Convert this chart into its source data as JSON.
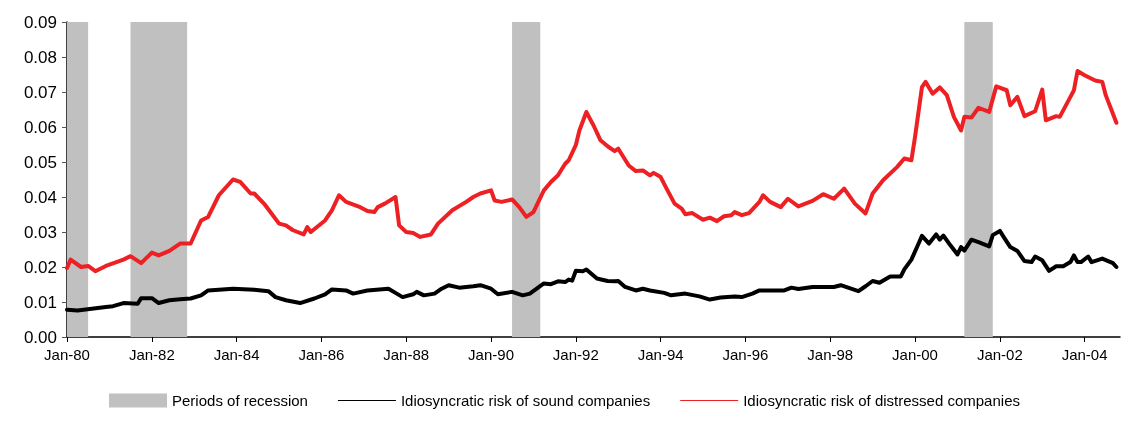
{
  "chart_data": {
    "type": "line",
    "xlim": [
      "1980-01",
      "2004-11"
    ],
    "xticks": [
      {
        "value": "1980-01",
        "label": "Jan-80"
      },
      {
        "value": "1982-01",
        "label": "Jan-82"
      },
      {
        "value": "1984-01",
        "label": "Jan-84"
      },
      {
        "value": "1986-01",
        "label": "Jan-86"
      },
      {
        "value": "1988-01",
        "label": "Jan-88"
      },
      {
        "value": "1990-01",
        "label": "Jan-90"
      },
      {
        "value": "1992-01",
        "label": "Jan-92"
      },
      {
        "value": "1994-01",
        "label": "Jan-94"
      },
      {
        "value": "1996-01",
        "label": "Jan-96"
      },
      {
        "value": "1998-01",
        "label": "Jan-98"
      },
      {
        "value": "2000-01",
        "label": "Jan-00"
      },
      {
        "value": "2002-01",
        "label": "Jan-02"
      },
      {
        "value": "2004-01",
        "label": "Jan-04"
      }
    ],
    "ylim": [
      0,
      0.09
    ],
    "yticks": [
      {
        "value": 0,
        "label": "0.00"
      },
      0.01,
      0.02,
      0.03,
      0.04,
      0.05,
      0.06,
      0.07,
      0.08,
      0.09
    ],
    "grid": false,
    "legend": "bottom",
    "marker": "none",
    "line_style": "solid",
    "bands": [
      {
        "axis": "x",
        "from": "1980-01",
        "to": "1980-07",
        "label": "Periods of recession",
        "color": "#c0c0c0"
      },
      {
        "axis": "x",
        "from": "1981-07",
        "to": "1982-11",
        "color": "#c0c0c0"
      },
      {
        "axis": "x",
        "from": "1990-07",
        "to": "1991-03",
        "color": "#c0c0c0"
      },
      {
        "axis": "x",
        "from": "2001-03",
        "to": "2001-11",
        "color": "#c0c0c0"
      }
    ],
    "series": [
      {
        "name": "Idiosyncratic risk of sound companies",
        "color": "#000000",
        "x": [
          "1980-01",
          "1980-04",
          "1980-08",
          "1980-12",
          "1981-02",
          "1981-05",
          "1981-09",
          "1981-10",
          "1982-01",
          "1982-03",
          "1982-06",
          "1982-09",
          "1982-12",
          "1983-03",
          "1983-05",
          "1983-09",
          "1983-12",
          "1984-06",
          "1984-10",
          "1984-12",
          "1985-03",
          "1985-07",
          "1985-11",
          "1986-02",
          "1986-04",
          "1986-08",
          "1986-10",
          "1987-02",
          "1987-08",
          "1987-10",
          "1987-12",
          "1988-03",
          "1988-04",
          "1988-06",
          "1988-09",
          "1988-11",
          "1989-01",
          "1989-04",
          "1989-08",
          "1989-10",
          "1990-01",
          "1990-03",
          "1990-07",
          "1990-10",
          "1990-12",
          "1991-04",
          "1991-06",
          "1991-08",
          "1991-10",
          "1991-11",
          "1991-12",
          "1992-01",
          "1992-03",
          "1992-04",
          "1992-07",
          "1992-10",
          "1992-12",
          "1993-01",
          "1993-03",
          "1993-06",
          "1993-08",
          "1993-10",
          "1994-02",
          "1994-04",
          "1994-08",
          "1994-12",
          "1995-03",
          "1995-06",
          "1995-10",
          "1995-12",
          "1996-03",
          "1996-05",
          "1996-08",
          "1996-12",
          "1997-02",
          "1997-04",
          "1997-08",
          "1998-02",
          "1998-04",
          "1998-09",
          "1998-11",
          "1999-01",
          "1999-03",
          "1999-06",
          "1999-09",
          "1999-10",
          "1999-12",
          "2000-02",
          "2000-03",
          "2000-05",
          "2000-07",
          "2000-08",
          "2000-09",
          "2000-11",
          "2001-01",
          "2001-02",
          "2001-03",
          "2001-05",
          "2001-07",
          "2001-10",
          "2001-11",
          "2002-01",
          "2002-02",
          "2002-04",
          "2002-06",
          "2002-08",
          "2002-10",
          "2002-11",
          "2003-01",
          "2003-03",
          "2003-05",
          "2003-07",
          "2003-09",
          "2003-10",
          "2003-11",
          "2003-12",
          "2004-02",
          "2004-03",
          "2004-06",
          "2004-09",
          "2004-10"
        ],
        "values": [
          0.0078,
          0.0076,
          0.0081,
          0.0086,
          0.0088,
          0.0097,
          0.0095,
          0.0111,
          0.0111,
          0.0097,
          0.0105,
          0.0108,
          0.011,
          0.0119,
          0.0133,
          0.0136,
          0.0138,
          0.0135,
          0.0131,
          0.0114,
          0.0105,
          0.0097,
          0.011,
          0.0122,
          0.0136,
          0.0133,
          0.0124,
          0.0133,
          0.0138,
          0.0126,
          0.0114,
          0.0122,
          0.0129,
          0.0119,
          0.0124,
          0.0138,
          0.0148,
          0.0141,
          0.0145,
          0.0148,
          0.0138,
          0.0122,
          0.0129,
          0.0119,
          0.0124,
          0.0153,
          0.0151,
          0.0159,
          0.0157,
          0.0164,
          0.0161,
          0.0189,
          0.0188,
          0.0193,
          0.0167,
          0.016,
          0.0159,
          0.016,
          0.0143,
          0.0133,
          0.0138,
          0.0133,
          0.0126,
          0.0119,
          0.0124,
          0.0116,
          0.0107,
          0.0113,
          0.0116,
          0.0114,
          0.0124,
          0.0133,
          0.0133,
          0.0133,
          0.0141,
          0.0137,
          0.0143,
          0.0143,
          0.0148,
          0.0131,
          0.0145,
          0.016,
          0.0155,
          0.0173,
          0.0173,
          0.0193,
          0.0221,
          0.0267,
          0.0289,
          0.0267,
          0.0293,
          0.0278,
          0.029,
          0.0262,
          0.0236,
          0.0257,
          0.0247,
          0.0278,
          0.0271,
          0.0259,
          0.0291,
          0.0303,
          0.0287,
          0.0257,
          0.0246,
          0.0217,
          0.0214,
          0.023,
          0.0219,
          0.0189,
          0.0202,
          0.0202,
          0.0214,
          0.0233,
          0.0214,
          0.0214,
          0.023,
          0.0214,
          0.0224,
          0.0211,
          0.02
        ]
      },
      {
        "name": "Idiosyncratic risk of distressed companies",
        "color": "#ed2024",
        "x": [
          "1980-01",
          "1980-02",
          "1980-05",
          "1980-07",
          "1980-09",
          "1980-12",
          "1981-05",
          "1981-07",
          "1981-10",
          "1982-01",
          "1982-03",
          "1982-06",
          "1982-09",
          "1982-12",
          "1983-03",
          "1983-05",
          "1983-08",
          "1983-12",
          "1984-02",
          "1984-05",
          "1984-06",
          "1984-09",
          "1985-01",
          "1985-03",
          "1985-05",
          "1985-08",
          "1985-09",
          "1985-10",
          "1986-02",
          "1986-04",
          "1986-06",
          "1986-08",
          "1986-12",
          "1987-02",
          "1987-04",
          "1987-05",
          "1987-07",
          "1987-10",
          "1987-11",
          "1988-01",
          "1988-03",
          "1988-05",
          "1988-08",
          "1988-10",
          "1989-02",
          "1989-06",
          "1989-08",
          "1989-10",
          "1990-01",
          "1990-02",
          "1990-04",
          "1990-07",
          "1990-09",
          "1990-11",
          "1991-01",
          "1991-04",
          "1991-06",
          "1991-08",
          "1991-10",
          "1991-11",
          "1992-01",
          "1992-02",
          "1992-04",
          "1992-05",
          "1992-06",
          "1992-08",
          "1992-10",
          "1992-12",
          "1993-01",
          "1993-04",
          "1993-06",
          "1993-08",
          "1993-10",
          "1993-11",
          "1994-01",
          "1994-03",
          "1994-05",
          "1994-07",
          "1994-08",
          "1994-10",
          "1995-01",
          "1995-03",
          "1995-05",
          "1995-07",
          "1995-09",
          "1995-10",
          "1995-12",
          "1996-02",
          "1996-05",
          "1996-06",
          "1996-08",
          "1996-11",
          "1997-01",
          "1997-04",
          "1997-08",
          "1997-11",
          "1998-02",
          "1998-05",
          "1998-08",
          "1998-11",
          "1999-01",
          "1999-04",
          "1999-08",
          "1999-10",
          "1999-12",
          "2000-01",
          "2000-03",
          "2000-04",
          "2000-06",
          "2000-08",
          "2000-10",
          "2000-12",
          "2001-02",
          "2001-03",
          "2001-05",
          "2001-07",
          "2001-10",
          "2001-12",
          "2002-03",
          "2002-04",
          "2002-06",
          "2002-08",
          "2002-11",
          "2003-01",
          "2003-02",
          "2003-05",
          "2003-06",
          "2003-09",
          "2003-10",
          "2003-11",
          "2004-01",
          "2004-04",
          "2004-06",
          "2004-07",
          "2004-09",
          "2004-10"
        ],
        "values": [
          0.0197,
          0.0221,
          0.02,
          0.0203,
          0.0188,
          0.0203,
          0.0221,
          0.0231,
          0.0211,
          0.0241,
          0.0233,
          0.0246,
          0.0267,
          0.0267,
          0.0333,
          0.0343,
          0.0405,
          0.045,
          0.0443,
          0.041,
          0.041,
          0.0378,
          0.0324,
          0.0319,
          0.0305,
          0.0293,
          0.0314,
          0.03,
          0.0333,
          0.0362,
          0.0405,
          0.0386,
          0.0371,
          0.036,
          0.0357,
          0.0371,
          0.0381,
          0.04,
          0.0319,
          0.03,
          0.0297,
          0.0286,
          0.0293,
          0.0324,
          0.0362,
          0.0386,
          0.04,
          0.041,
          0.0419,
          0.039,
          0.0386,
          0.0393,
          0.0371,
          0.0343,
          0.0357,
          0.0419,
          0.0443,
          0.0462,
          0.0495,
          0.0505,
          0.0548,
          0.059,
          0.0643,
          0.0624,
          0.0605,
          0.0562,
          0.0545,
          0.0531,
          0.0538,
          0.049,
          0.0474,
          0.0476,
          0.0462,
          0.0469,
          0.0457,
          0.0419,
          0.0381,
          0.0367,
          0.0351,
          0.0354,
          0.0335,
          0.0341,
          0.0331,
          0.0345,
          0.0348,
          0.0357,
          0.0348,
          0.0354,
          0.0386,
          0.0405,
          0.0386,
          0.0371,
          0.0395,
          0.0373,
          0.0389,
          0.0408,
          0.0395,
          0.0424,
          0.0381,
          0.0353,
          0.041,
          0.0448,
          0.0486,
          0.051,
          0.0505,
          0.0571,
          0.0714,
          0.0729,
          0.0695,
          0.0713,
          0.0691,
          0.0629,
          0.059,
          0.0629,
          0.0627,
          0.0655,
          0.0643,
          0.0716,
          0.0705,
          0.0662,
          0.0686,
          0.0631,
          0.0645,
          0.0707,
          0.0619,
          0.0631,
          0.0629,
          0.0686,
          0.0705,
          0.076,
          0.0748,
          0.0733,
          0.0729,
          0.0691,
          0.0638,
          0.0612
        ]
      }
    ]
  }
}
